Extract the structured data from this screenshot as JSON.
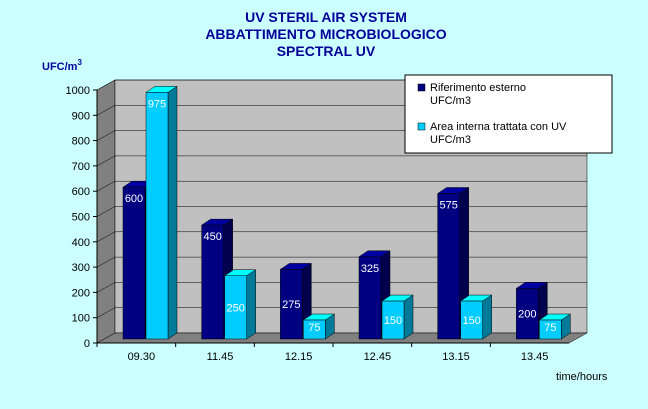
{
  "chart_data": {
    "type": "bar",
    "title": [
      "UV  STERIL  AIR  SYSTEM",
      "ABBATTIMENTO  MICROBIOLOGICO",
      "SPECTRAL  UV"
    ],
    "ylabel": "UFC/m",
    "ylabel_superscript": "3",
    "xlabel": "time/hours",
    "categories": [
      "09.30",
      "11.45",
      "12.15",
      "12.45",
      "13.15",
      "13.45"
    ],
    "y_ticks": [
      "0",
      "100",
      "200",
      "300",
      "400",
      "500",
      "600",
      "700",
      "800",
      "900",
      "1000"
    ],
    "ylim": [
      0,
      1000
    ],
    "grid": true,
    "legend_position": "top-right",
    "series": [
      {
        "name": "Riferimento esterno UFC/m3",
        "legend_lines": [
          "Riferimento esterno",
          "UFC/m3"
        ],
        "color": "#000080",
        "values": [
          600,
          450,
          275,
          325,
          575,
          200
        ],
        "labels": [
          "600",
          "450",
          "275",
          "325",
          "575",
          "200"
        ]
      },
      {
        "name": "Area interna trattata con UV UFC/m3",
        "legend_lines": [
          "Area interna trattata con UV",
          "UFC/m3"
        ],
        "color": "#00ccff",
        "values": [
          975,
          250,
          75,
          150,
          150,
          75
        ],
        "labels": [
          "975",
          "250",
          "75",
          "150",
          "150",
          "75"
        ]
      }
    ]
  }
}
